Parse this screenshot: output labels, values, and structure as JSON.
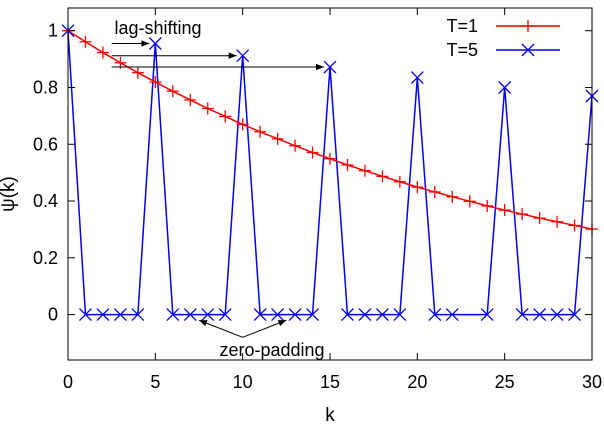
{
  "chart_data": {
    "type": "line",
    "title": "",
    "xlabel": "k",
    "ylabel": "ψ(k)",
    "xlim": [
      0,
      30
    ],
    "ylim": [
      -0.16,
      1.08
    ],
    "x_ticks": [
      0,
      5,
      10,
      15,
      20,
      25,
      30
    ],
    "x_tick_labels": [
      "0",
      "5",
      "10",
      "15",
      "20",
      "25",
      "30"
    ],
    "y_ticks": [
      0,
      0.2,
      0.4,
      0.6,
      0.8,
      1
    ],
    "y_tick_labels": [
      "0",
      "0.2",
      "0.4",
      "0.6",
      "0.8",
      "1"
    ],
    "grid": false,
    "legend_position": "top-right",
    "series": [
      {
        "name": "T=1",
        "color": "#ff0000",
        "marker": "plus",
        "x": [
          0,
          1,
          2,
          3,
          4,
          5,
          6,
          7,
          8,
          9,
          10,
          11,
          12,
          13,
          14,
          15,
          16,
          17,
          18,
          19,
          20,
          21,
          22,
          23,
          24,
          25,
          26,
          27,
          28,
          29,
          30
        ],
        "y": [
          1.0,
          0.961,
          0.923,
          0.887,
          0.852,
          0.819,
          0.787,
          0.756,
          0.726,
          0.698,
          0.67,
          0.644,
          0.619,
          0.595,
          0.571,
          0.549,
          0.527,
          0.507,
          0.487,
          0.468,
          0.449,
          0.432,
          0.415,
          0.399,
          0.383,
          0.368,
          0.354,
          0.34,
          0.327,
          0.314,
          0.301
        ]
      },
      {
        "name": "T=5",
        "color": "#0000ff",
        "marker": "cross",
        "x": [
          0,
          1,
          2,
          3,
          4,
          5,
          6,
          7,
          8,
          9,
          10,
          11,
          12,
          13,
          14,
          15,
          16,
          17,
          18,
          19,
          20,
          21,
          22,
          24,
          25,
          26,
          27,
          28,
          29,
          30
        ],
        "y": [
          1.0,
          0,
          0,
          0,
          0,
          0.955,
          0,
          0,
          0,
          0,
          0.912,
          0,
          0,
          0,
          0,
          0.872,
          0,
          0,
          0,
          0,
          0.835,
          0,
          0,
          0,
          0.8,
          0,
          0,
          0,
          0,
          0.77
        ]
      }
    ],
    "annotations": [
      {
        "text": "lag-shifting",
        "arrows": [
          {
            "from": [
              2.5,
              0.955
            ],
            "to": [
              5,
              0.955
            ]
          },
          {
            "from": [
              2.5,
              0.912
            ],
            "to": [
              10,
              0.912
            ]
          },
          {
            "from": [
              2.5,
              0.872
            ],
            "to": [
              15,
              0.872
            ]
          }
        ]
      },
      {
        "text": "zero-padding",
        "arrows": [
          {
            "from": [
              10,
              -0.08
            ],
            "to": [
              7.5,
              -0.02
            ]
          },
          {
            "from": [
              10,
              -0.08
            ],
            "to": [
              12.5,
              -0.02
            ]
          }
        ]
      }
    ]
  }
}
